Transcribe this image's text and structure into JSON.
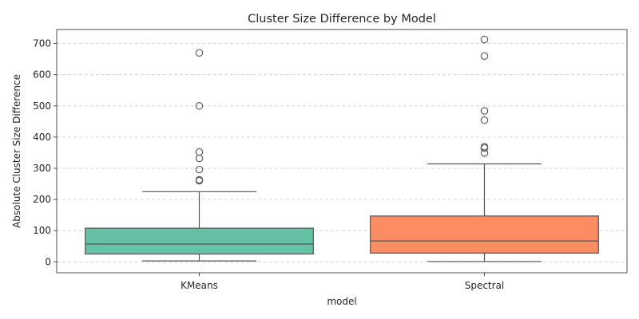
{
  "chart_data": {
    "type": "box",
    "title": "Cluster Size Difference by Model",
    "xlabel": "model",
    "ylabel": "Absolute Cluster Size Difference",
    "ylim": [
      -35,
      745
    ],
    "yticks": [
      0,
      100,
      200,
      300,
      400,
      500,
      600,
      700
    ],
    "grid": "horizontal dashed",
    "categories": [
      "KMeans",
      "Spectral"
    ],
    "boxes": [
      {
        "label": "KMeans",
        "color": "#66c2a5",
        "whisker_low": 3,
        "q1": 25,
        "median": 57,
        "q3": 108,
        "whisker_high": 225,
        "outliers": [
          260,
          263,
          296,
          332,
          352,
          500,
          670
        ]
      },
      {
        "label": "Spectral",
        "color": "#fc8d62",
        "whisker_low": 1,
        "q1": 28,
        "median": 67,
        "q3": 147,
        "whisker_high": 314,
        "outliers": [
          349,
          365,
          369,
          454,
          484,
          660,
          713
        ]
      }
    ]
  }
}
